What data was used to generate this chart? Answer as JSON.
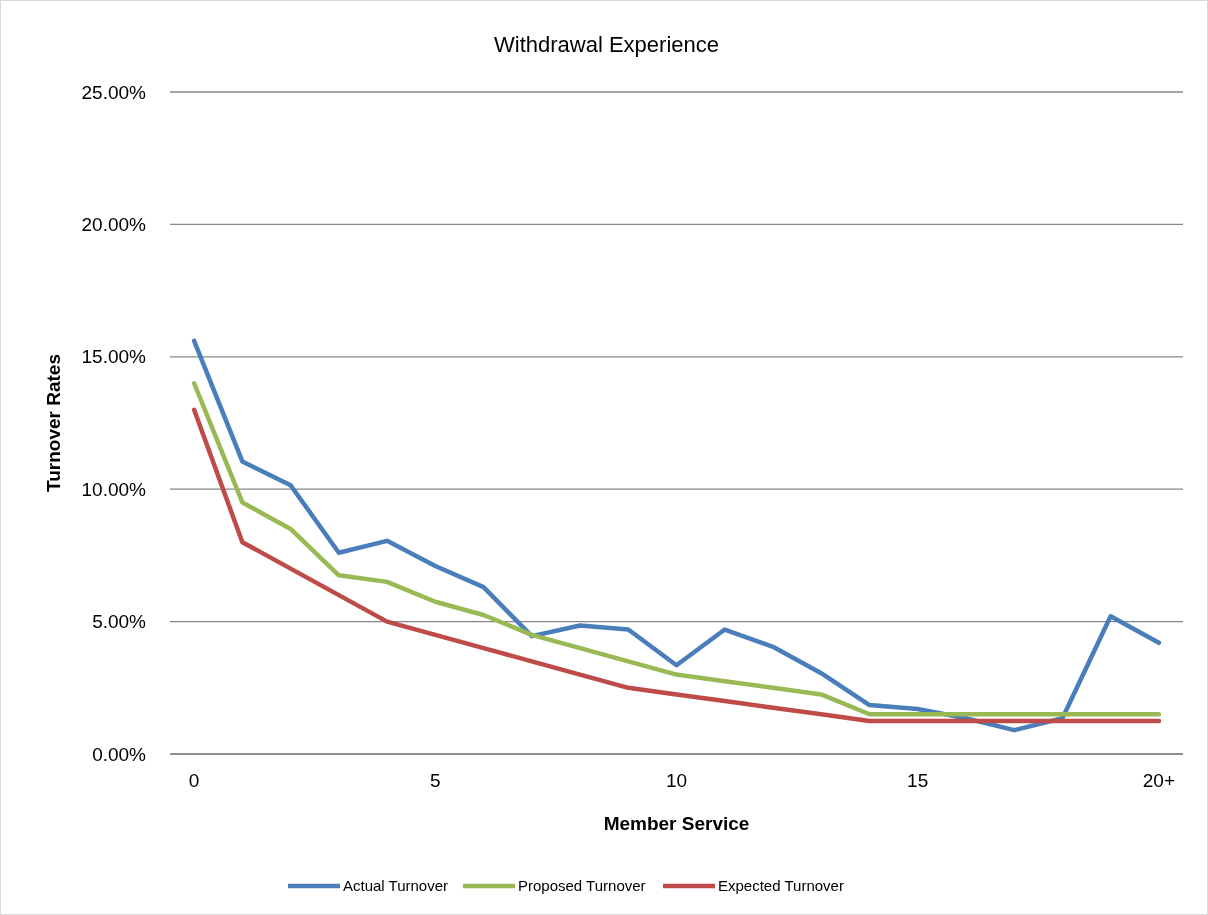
{
  "chart_data": {
    "type": "line",
    "title": "Withdrawal Experience",
    "xlabel": "Member Service",
    "ylabel": "Turnover Rates",
    "categories": [
      "0",
      null,
      null,
      null,
      null,
      "5",
      null,
      null,
      null,
      null,
      "10",
      null,
      null,
      null,
      null,
      "15",
      null,
      null,
      null,
      null,
      "20+"
    ],
    "series": [
      {
        "name": "Actual Turnover",
        "color": "#4a7ebb",
        "values": [
          15.6,
          11.05,
          10.15,
          7.6,
          8.05,
          7.1,
          6.3,
          4.45,
          4.85,
          4.7,
          3.35,
          4.7,
          4.05,
          3.05,
          1.85,
          1.7,
          1.35,
          0.9,
          1.35,
          5.2,
          4.2
        ]
      },
      {
        "name": "Proposed Turnover",
        "color": "#98b954",
        "values": [
          14,
          9.5,
          8.5,
          6.75,
          6.5,
          5.75,
          5.25,
          4.5,
          4.0,
          3.5,
          3.0,
          2.75,
          2.5,
          2.25,
          1.5,
          1.5,
          1.5,
          1.5,
          1.5,
          1.5,
          1.5
        ]
      },
      {
        "name": "Expected Turnover",
        "color": "#be4b48",
        "values": [
          13,
          8,
          7,
          6,
          5,
          4.5,
          4,
          3.5,
          3,
          2.5,
          2.25,
          2,
          1.75,
          1.5,
          1.25,
          1.25,
          1.25,
          1.25,
          1.25,
          1.25,
          1.25
        ]
      }
    ],
    "ylim": [
      0,
      25
    ],
    "yticks": [
      {
        "value": 0,
        "label": "0.00%"
      },
      {
        "value": 5,
        "label": "5.00%"
      },
      {
        "value": 10,
        "label": "10.00%"
      },
      {
        "value": 15,
        "label": "15.00%"
      },
      {
        "value": 20,
        "label": "20.00%"
      },
      {
        "value": 25,
        "label": "25.00%"
      }
    ],
    "grid": "y",
    "legend": "bottom",
    "marker": "none",
    "line_style": "solid"
  }
}
